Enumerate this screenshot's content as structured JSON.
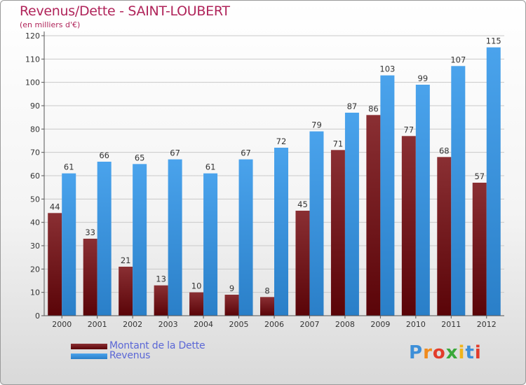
{
  "header": {
    "title": "Revenus/Dette - SAINT-LOUBERT",
    "subtitle": "(en milliers d'€)"
  },
  "legend": {
    "items": [
      {
        "label": "Montant de la Dette",
        "color": "#6e0c10"
      },
      {
        "label": "Revenus",
        "color": "#3f97e0"
      }
    ]
  },
  "logo": {
    "text": "Proxiti",
    "letters": [
      "P",
      "r",
      "o",
      "x",
      "i",
      "t",
      "i"
    ],
    "colors": [
      "#3d8fd8",
      "#f08a1c",
      "#e23c2b",
      "#3aa83a",
      "#f0b41c",
      "#3d8fd8",
      "#e23c2b"
    ]
  },
  "chart_data": {
    "type": "bar",
    "categories": [
      "2000",
      "2001",
      "2002",
      "2003",
      "2004",
      "2005",
      "2006",
      "2007",
      "2008",
      "2009",
      "2010",
      "2011",
      "2012"
    ],
    "series": [
      {
        "name": "Montant de la Dette",
        "color": "#6e0c10",
        "values": [
          44,
          33,
          21,
          13,
          10,
          9,
          8,
          45,
          71,
          86,
          77,
          68,
          57
        ]
      },
      {
        "name": "Revenus",
        "color": "#3f97e0",
        "values": [
          61,
          66,
          65,
          67,
          61,
          67,
          72,
          79,
          87,
          103,
          99,
          107,
          115
        ]
      }
    ],
    "title": "Revenus/Dette - SAINT-LOUBERT",
    "ylabel": "(en milliers d'€)",
    "ylim": [
      0,
      120
    ],
    "yticks": [
      0,
      10,
      20,
      30,
      40,
      50,
      60,
      70,
      80,
      90,
      100,
      110,
      120
    ],
    "grid": true,
    "legend_position": "bottom-left"
  }
}
